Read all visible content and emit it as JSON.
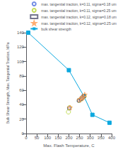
{
  "chart_data": {
    "type": "scatter",
    "xlabel": "Max. Flash Temperature, C",
    "ylabel": "Bulk Shear Strength, Max. Tangential Traction, MPa",
    "xlim": [
      0,
      400
    ],
    "ylim": [
      0,
      140
    ],
    "xticks": [
      0,
      50,
      100,
      150,
      200,
      250,
      300,
      350,
      400
    ],
    "yticks": [
      0,
      20,
      40,
      60,
      80,
      100,
      120,
      140
    ],
    "grid": false,
    "legend": "upper right",
    "series": [
      {
        "name": "max. tangential traction, k=0.11, sigma=0.18 um",
        "marker": "open_circle",
        "x": [
          200,
          245,
          255,
          262,
          268
        ],
        "values": [
          35,
          45,
          47,
          49,
          51
        ]
      },
      {
        "name": "max. tangential traction, k=0.11, sigma=0.25 um",
        "marker": "open_circle",
        "x": [
          203,
          248,
          258,
          265,
          272
        ],
        "values": [
          36,
          46,
          48,
          50,
          52
        ]
      },
      {
        "name": "max. tangential traction, k=0.12, sigma=0.18 um",
        "marker": "open_square",
        "x": [
          202,
          247,
          257,
          263,
          270
        ],
        "values": [
          35,
          46,
          48,
          50,
          52
        ]
      },
      {
        "name": "max. tangential traction, k=0.12, sigma=0.25 um",
        "marker": "open_star",
        "x": [
          205,
          250,
          260,
          267,
          274
        ],
        "values": [
          36,
          47,
          49,
          51,
          54
        ]
      },
      {
        "name": "bulk shear strength",
        "type": "line",
        "marker": "filled_square",
        "x": [
          10,
          200,
          270,
          310,
          390
        ],
        "values": [
          140,
          88,
          52,
          26,
          15
        ]
      },
      {
        "marker": "open_circle",
        "x": [
          198
        ],
        "values": [
          30
        ]
      }
    ]
  }
}
